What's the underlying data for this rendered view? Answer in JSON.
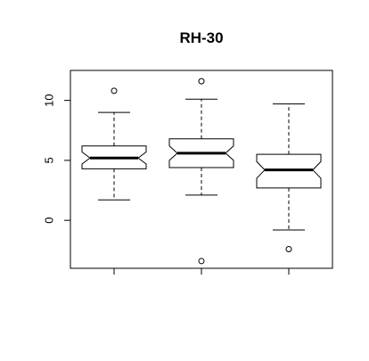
{
  "chart_data": {
    "type": "boxplot",
    "title": "RH-30",
    "xlabel": "",
    "ylabel": "",
    "notched": true,
    "ylim": [
      -4,
      12.5
    ],
    "xlim": [
      0.5,
      3.5
    ],
    "yticks": [
      0,
      5,
      10
    ],
    "ytick_labels": [
      "0",
      "5",
      "10"
    ],
    "xticks": [
      1,
      2,
      3
    ],
    "xtick_labels": [
      "",
      "",
      ""
    ],
    "grid": false,
    "legend": "none",
    "colors": {
      "box_fill": "#ffffff",
      "stroke": "#000000"
    },
    "series": [
      {
        "x": 1,
        "whisker_low": 1.7,
        "q1": 4.3,
        "median": 5.2,
        "q3": 6.2,
        "whisker_high": 9.0,
        "notch_low": 4.7,
        "notch_high": 5.7,
        "outliers": [
          10.8
        ]
      },
      {
        "x": 2,
        "whisker_low": 2.1,
        "q1": 4.4,
        "median": 5.6,
        "q3": 6.8,
        "whisker_high": 10.1,
        "notch_low": 5.0,
        "notch_high": 6.2,
        "outliers": [
          11.6,
          -3.4
        ]
      },
      {
        "x": 3,
        "whisker_low": -0.8,
        "q1": 2.7,
        "median": 4.2,
        "q3": 5.5,
        "whisker_high": 9.7,
        "notch_low": 3.5,
        "notch_high": 4.9,
        "outliers": [
          -2.4
        ]
      }
    ]
  }
}
